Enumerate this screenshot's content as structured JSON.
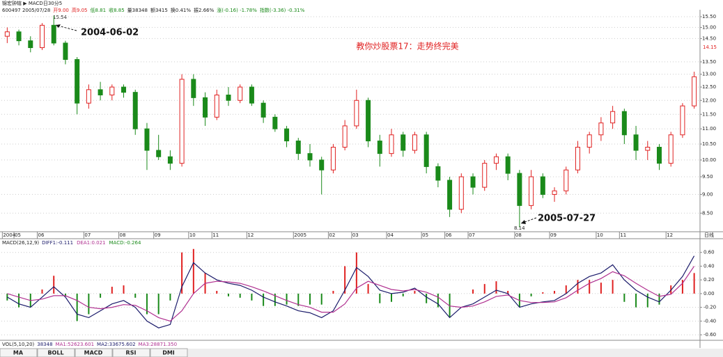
{
  "header": {
    "title": "锦宏钟辖 ▶ MACD日30分5",
    "quote": [
      "600497 2005/07/28",
      "开9.00",
      "高9.05",
      "低8.81",
      "收8.85",
      "量38348",
      "额3415",
      "换0.41%",
      "振2.66%",
      "涨(-0.16) -1.78%",
      "指数(-3.36) -0.31%"
    ]
  },
  "chart_data": [
    {
      "type": "candlestick",
      "log_scale": true,
      "grid": true,
      "up_color": "#e02020",
      "down_color": "#1a8a1a",
      "annotations": {
        "high_value": "15.54",
        "high_date": "2004-06-02",
        "low_value": "8.14",
        "low_date": "2005-07-27",
        "headline": "教你炒股票17：走势终完美",
        "last_price": "14.15",
        "period": "日线"
      },
      "categories": [
        "2004",
        "05",
        null,
        "06",
        null,
        null,
        null,
        "07",
        null,
        null,
        "08",
        null,
        null,
        "09",
        null,
        null,
        "10",
        null,
        "11",
        null,
        null,
        "12",
        null,
        null,
        null,
        "2005",
        null,
        null,
        "02",
        null,
        "03",
        null,
        null,
        "04",
        null,
        null,
        "05",
        null,
        "06",
        null,
        "07",
        null,
        null,
        null,
        "08",
        null,
        null,
        "09",
        null,
        null,
        null,
        "10",
        null,
        "11",
        null,
        null,
        null,
        "12",
        null,
        null
      ],
      "open": [
        14.6,
        14.8,
        14.4,
        14.1,
        15.1,
        14.3,
        13.6,
        11.9,
        12.4,
        12.2,
        12.5,
        12.3,
        11.0,
        10.3,
        10.1,
        9.9,
        12.8,
        12.1,
        11.4,
        12.2,
        12.0,
        12.5,
        11.9,
        11.4,
        11.0,
        10.6,
        10.2,
        10.0,
        9.7,
        10.4,
        11.1,
        12.0,
        10.6,
        10.2,
        10.8,
        10.3,
        10.8,
        9.8,
        9.4,
        8.6,
        9.5,
        9.2,
        9.9,
        10.1,
        9.6,
        8.7,
        9.5,
        9.0,
        9.1,
        9.7,
        10.4,
        10.8,
        11.2,
        11.6,
        10.8,
        10.3,
        10.4,
        9.9,
        10.8,
        11.8
      ],
      "high": [
        15.0,
        14.9,
        14.6,
        15.2,
        15.54,
        14.4,
        13.7,
        12.6,
        12.7,
        12.6,
        12.6,
        12.4,
        11.2,
        10.8,
        10.3,
        13.0,
        13.0,
        12.3,
        12.4,
        12.5,
        12.6,
        12.6,
        12.0,
        11.5,
        11.1,
        10.7,
        10.5,
        10.1,
        10.5,
        11.3,
        12.4,
        12.1,
        10.8,
        11.0,
        10.9,
        10.9,
        10.9,
        9.9,
        9.5,
        9.6,
        9.6,
        10.0,
        10.2,
        10.2,
        9.7,
        9.7,
        9.6,
        9.2,
        9.8,
        10.6,
        10.9,
        11.4,
        11.8,
        11.7,
        11.1,
        10.6,
        10.5,
        10.9,
        11.9,
        13.1
      ],
      "low": [
        14.3,
        14.2,
        13.9,
        14.0,
        14.2,
        13.4,
        11.5,
        11.7,
        12.0,
        12.0,
        12.1,
        10.8,
        9.7,
        10.0,
        9.7,
        9.8,
        11.8,
        11.1,
        11.3,
        11.8,
        11.9,
        11.8,
        11.2,
        10.9,
        10.4,
        10.0,
        9.8,
        9.0,
        9.6,
        10.3,
        11.0,
        10.4,
        9.8,
        10.1,
        10.1,
        10.2,
        9.6,
        9.2,
        8.4,
        8.5,
        9.0,
        9.1,
        9.7,
        9.4,
        8.14,
        8.6,
        8.9,
        8.8,
        9.0,
        9.6,
        10.2,
        10.6,
        11.0,
        10.5,
        10.0,
        10.0,
        9.7,
        9.8,
        10.7,
        11.7
      ],
      "close": [
        14.8,
        14.4,
        14.1,
        15.1,
        14.3,
        13.6,
        11.9,
        12.4,
        12.2,
        12.5,
        12.3,
        11.0,
        10.3,
        10.1,
        9.9,
        12.8,
        12.1,
        11.4,
        12.2,
        12.0,
        12.5,
        11.9,
        11.4,
        11.0,
        10.6,
        10.2,
        10.0,
        9.7,
        10.4,
        11.1,
        12.0,
        10.6,
        10.2,
        10.8,
        10.3,
        10.8,
        9.8,
        9.4,
        8.6,
        9.5,
        9.2,
        9.9,
        10.1,
        9.6,
        8.7,
        9.5,
        9.0,
        9.1,
        9.7,
        10.4,
        10.8,
        11.2,
        11.6,
        10.8,
        10.3,
        10.4,
        9.9,
        10.8,
        11.8,
        12.9
      ],
      "ylim": [
        8.03,
        15.7
      ],
      "yticks": [
        {
          "value": 8.5,
          "label": "8.50"
        },
        {
          "value": 9,
          "label": "9.00"
        },
        {
          "value": 9.5,
          "label": "9.50"
        },
        {
          "value": 10,
          "label": "10.00"
        },
        {
          "value": 10.5,
          "label": "10.50"
        },
        {
          "value": 11,
          "label": "11.00"
        },
        {
          "value": 11.5,
          "label": "11.50"
        },
        {
          "value": 12,
          "label": "12.00"
        },
        {
          "value": 12.5,
          "label": "12.50"
        },
        {
          "value": 13,
          "label": "13.00"
        },
        {
          "value": 13.5,
          "label": "13.50"
        },
        {
          "value": 14.5,
          "label": "14.50"
        },
        {
          "value": 15,
          "label": "15.00"
        },
        {
          "value": 15.5,
          "label": "15.50"
        }
      ]
    },
    {
      "type": "macd",
      "grid": true,
      "legend_text": "MACD(26,12,9)",
      "legend_items": [
        "DIFF1:-0.111",
        "DEA1:0.021",
        "MACD:-0.264"
      ],
      "series": [
        {
          "color": "#1a1a6a",
          "values": [
            -0.05,
            -0.15,
            -0.2,
            -0.05,
            0.1,
            -0.05,
            -0.3,
            -0.35,
            -0.25,
            -0.15,
            -0.1,
            -0.2,
            -0.4,
            -0.5,
            -0.45,
            0.1,
            0.45,
            0.3,
            0.2,
            0.15,
            0.12,
            0.05,
            -0.05,
            -0.12,
            -0.18,
            -0.25,
            -0.28,
            -0.35,
            -0.25,
            0.05,
            0.38,
            0.25,
            0.05,
            0.0,
            0.02,
            0.08,
            -0.05,
            -0.15,
            -0.35,
            -0.2,
            -0.15,
            -0.05,
            0.05,
            0.0,
            -0.2,
            -0.15,
            -0.12,
            -0.1,
            0.0,
            0.15,
            0.25,
            0.3,
            0.42,
            0.2,
            0.05,
            -0.05,
            -0.12,
            0.05,
            0.25,
            0.55
          ]
        },
        {
          "color": "#b03090",
          "values": [
            0.0,
            -0.05,
            -0.1,
            -0.08,
            -0.03,
            -0.03,
            -0.1,
            -0.2,
            -0.22,
            -0.2,
            -0.16,
            -0.17,
            -0.25,
            -0.35,
            -0.4,
            -0.25,
            0.0,
            0.15,
            0.18,
            0.17,
            0.15,
            0.1,
            0.04,
            -0.03,
            -0.1,
            -0.16,
            -0.2,
            -0.27,
            -0.27,
            -0.15,
            0.08,
            0.18,
            0.12,
            0.06,
            0.04,
            0.06,
            0.02,
            -0.05,
            -0.18,
            -0.2,
            -0.18,
            -0.12,
            -0.04,
            -0.02,
            -0.1,
            -0.13,
            -0.13,
            -0.12,
            -0.06,
            0.05,
            0.15,
            0.22,
            0.32,
            0.26,
            0.15,
            0.05,
            -0.04,
            -0.01,
            0.15,
            0.4
          ]
        }
      ],
      "histogram": {
        "up_color": "#e02020",
        "down_color": "#1a8a1a",
        "values": [
          -0.1,
          -0.2,
          -0.2,
          0.06,
          0.26,
          -0.04,
          -0.4,
          -0.3,
          -0.06,
          0.1,
          0.12,
          -0.06,
          -0.3,
          -0.3,
          -0.1,
          0.6,
          0.65,
          0.3,
          0.04,
          -0.04,
          -0.06,
          -0.1,
          -0.18,
          -0.18,
          -0.16,
          -0.18,
          -0.16,
          -0.16,
          0.04,
          0.4,
          0.6,
          0.14,
          -0.14,
          -0.12,
          -0.04,
          0.04,
          -0.14,
          -0.2,
          -0.34,
          0.0,
          0.06,
          0.14,
          0.18,
          0.04,
          -0.2,
          -0.04,
          0.02,
          0.04,
          0.12,
          0.2,
          0.2,
          0.16,
          0.2,
          -0.12,
          -0.2,
          -0.2,
          -0.16,
          0.12,
          0.2,
          0.3
        ]
      },
      "ylim": [
        -0.68,
        0.8
      ],
      "yticks": [
        {
          "value": 0.6,
          "label": "0.60"
        },
        {
          "value": 0.4,
          "label": "0.40"
        },
        {
          "value": 0.2,
          "label": "0.20"
        },
        {
          "value": 0,
          "label": "0.00"
        },
        {
          "value": -0.2,
          "label": "-0.20"
        },
        {
          "value": -0.4,
          "label": "-0.40"
        },
        {
          "value": -0.6,
          "label": "-0.60"
        }
      ]
    }
  ],
  "volume_bar": {
    "label": "VOL(5,10,20)",
    "items": [
      "38348",
      "MA1:52623.601",
      "MA2:33675.602",
      "MA3:28871.350"
    ]
  },
  "tabs": [
    "MA",
    "BOLL",
    "MACD",
    "RSI",
    "DMI"
  ]
}
